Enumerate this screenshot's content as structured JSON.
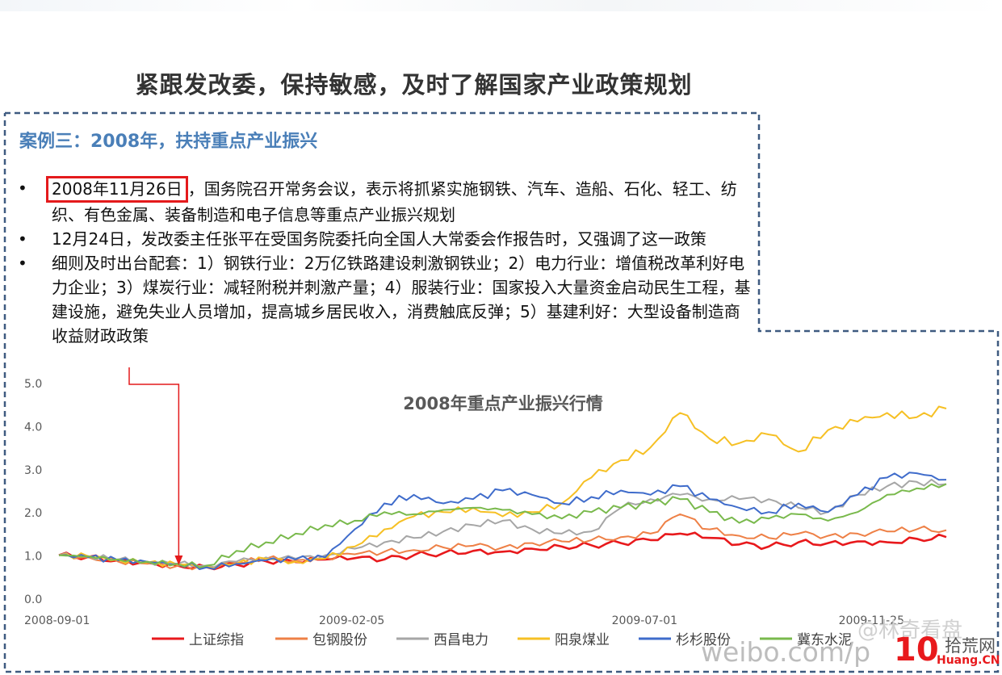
{
  "slide": {
    "title": "紧跟发改委，保持敏感，及时了解国家产业政策规划",
    "case_title": "案例三：2008年，扶持重点产业振兴",
    "bullets": [
      {
        "highlight": "2008年11月26日",
        "text": "，国务院召开常务会议，表示将抓紧实施钢铁、汽车、造船、石化、轻工、纺织、有色金属、装备制造和电子信息等重点产业振兴规划"
      },
      {
        "highlight": "",
        "text": "12月24日，发改委主任张平在受国务院委托向全国人大常委会作报告时，又强调了这一政策"
      },
      {
        "highlight": "",
        "text": "细则及时出台配套：1）钢铁行业：2万亿铁路建设刺激钢铁业；2）电力行业：增值税改革利好电力企业；3）煤炭行业：减轻附税并刺激产量；4）服装行业：国家投入大量资金启动民生工程，基建设施，避免失业人员增加，提高城乡居民收入，消费触底反弹；5）基建利好：大型设备制造商收益财政政策"
      }
    ],
    "bullet_symbol": "•"
  },
  "watermark": {
    "weibo": "weibo.com/p",
    "handle": "@林奇看盘",
    "site_number": "10",
    "site_name": "拾荒网",
    "site_domain": "Huang.CN"
  },
  "chart_data": {
    "type": "line",
    "title": "2008年重点产业振兴行情",
    "xlabel": "",
    "ylabel": "",
    "ylim": [
      0,
      5
    ],
    "yticks": [
      "0.0",
      "1.0",
      "2.0",
      "3.0",
      "4.0",
      "5.0"
    ],
    "x_tick_labels": [
      "2008-09-01",
      "2009-02-05",
      "2009-07-01",
      "2009-11-25"
    ],
    "x_tick_positions": [
      0,
      0.33,
      0.66,
      1.0
    ],
    "grid": false,
    "legend_position": "bottom",
    "marker_date": "2008-11-26",
    "marker_x": 0.135,
    "series": [
      {
        "name": "上证综指",
        "color": "#e8191c",
        "values": [
          1.0,
          0.96,
          0.88,
          0.82,
          0.76,
          0.72,
          0.78,
          0.86,
          0.84,
          0.9,
          0.93,
          0.9,
          1.0,
          1.05,
          1.1,
          1.08,
          1.15,
          1.2,
          1.23,
          1.28,
          1.35,
          1.5,
          1.4,
          1.25,
          1.2,
          1.3,
          1.28,
          1.32,
          1.3,
          1.38,
          1.42
        ]
      },
      {
        "name": "包钢股份",
        "color": "#ee8046",
        "values": [
          1.0,
          0.95,
          0.85,
          0.8,
          0.75,
          0.72,
          0.82,
          0.92,
          0.88,
          0.95,
          1.02,
          1.08,
          1.12,
          1.18,
          1.22,
          1.18,
          1.28,
          1.32,
          1.35,
          1.42,
          1.5,
          1.95,
          1.6,
          1.45,
          1.4,
          1.5,
          1.45,
          1.5,
          1.55,
          1.6,
          1.58
        ]
      },
      {
        "name": "西昌电力",
        "color": "#a6a6a6",
        "values": [
          1.0,
          0.98,
          0.9,
          0.85,
          0.8,
          0.76,
          0.85,
          0.95,
          0.92,
          1.0,
          1.15,
          1.3,
          1.4,
          1.55,
          1.7,
          1.8,
          1.6,
          1.5,
          1.55,
          2.1,
          2.3,
          2.4,
          2.3,
          2.3,
          2.3,
          2.1,
          2.0,
          2.4,
          2.6,
          2.7,
          2.65
        ]
      },
      {
        "name": "阳泉煤业",
        "color": "#f6c024",
        "values": [
          1.0,
          0.97,
          0.9,
          0.83,
          0.78,
          0.74,
          0.8,
          0.92,
          0.85,
          0.92,
          1.2,
          1.6,
          1.9,
          2.0,
          2.1,
          1.9,
          2.0,
          2.2,
          2.8,
          3.2,
          3.5,
          4.3,
          3.7,
          3.6,
          3.8,
          3.4,
          3.9,
          4.1,
          4.3,
          4.2,
          4.4
        ]
      },
      {
        "name": "杉杉股份",
        "color": "#3f6ccb",
        "values": [
          1.0,
          0.95,
          0.88,
          0.84,
          0.8,
          0.72,
          0.8,
          0.88,
          0.9,
          0.95,
          1.6,
          2.2,
          2.4,
          2.2,
          2.3,
          2.5,
          2.4,
          2.2,
          2.35,
          2.5,
          2.4,
          2.6,
          2.3,
          2.1,
          2.0,
          2.2,
          2.0,
          2.4,
          2.8,
          2.9,
          2.75
        ]
      },
      {
        "name": "冀东水泥",
        "color": "#79b94c",
        "values": [
          1.0,
          0.97,
          0.9,
          0.85,
          0.8,
          0.76,
          1.1,
          1.3,
          1.5,
          1.7,
          1.8,
          2.0,
          1.95,
          2.05,
          2.1,
          2.05,
          1.95,
          1.85,
          2.0,
          2.1,
          2.2,
          2.3,
          2.0,
          1.75,
          1.85,
          1.95,
          1.8,
          2.0,
          2.4,
          2.55,
          2.65
        ]
      }
    ]
  }
}
